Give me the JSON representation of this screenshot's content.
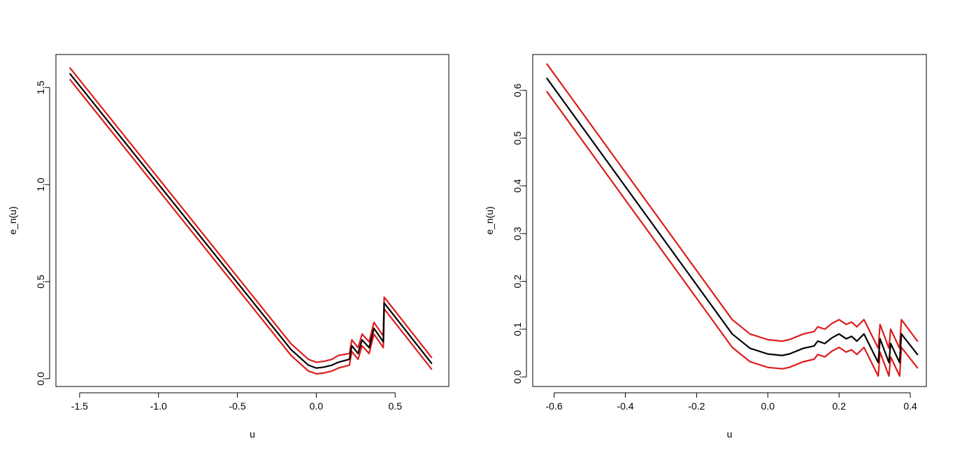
{
  "colors": {
    "estimate": "#000000",
    "bounds": "#dd1c1c",
    "frame": "#000000",
    "background": "#ffffff"
  },
  "chart_data": [
    {
      "type": "line",
      "title": "",
      "xlabel": "u",
      "ylabel": "e_n(u)",
      "xlim": [
        -1.65,
        0.84
      ],
      "ylim": [
        -0.04,
        1.67
      ],
      "xticks": [
        -1.5,
        -1.0,
        -0.5,
        0.0,
        0.5
      ],
      "xtick_labels": [
        "-1.5",
        "-1.0",
        "-0.5",
        "0.0",
        "0.5"
      ],
      "yticks": [
        0.0,
        0.5,
        1.0,
        1.5
      ],
      "ytick_labels": [
        "0.0",
        "0.5",
        "1.0",
        "1.5"
      ],
      "grid": false,
      "legend": "none",
      "series": [
        {
          "role": "upper",
          "color": "#dd1c1c",
          "points": [
            [
              -1.56,
              1.6
            ],
            [
              -0.16,
              0.18
            ],
            [
              -0.05,
              0.1
            ],
            [
              0.0,
              0.085
            ],
            [
              0.05,
              0.09
            ],
            [
              0.1,
              0.1
            ],
            [
              0.14,
              0.12
            ],
            [
              0.21,
              0.13
            ],
            [
              0.225,
              0.2
            ],
            [
              0.265,
              0.16
            ],
            [
              0.29,
              0.23
            ],
            [
              0.335,
              0.19
            ],
            [
              0.365,
              0.29
            ],
            [
              0.425,
              0.22
            ],
            [
              0.43,
              0.42
            ],
            [
              0.73,
              0.11
            ]
          ]
        },
        {
          "role": "estimate",
          "color": "#000000",
          "points": [
            [
              -1.56,
              1.57
            ],
            [
              -0.16,
              0.15
            ],
            [
              -0.05,
              0.07
            ],
            [
              0.0,
              0.055
            ],
            [
              0.05,
              0.06
            ],
            [
              0.1,
              0.07
            ],
            [
              0.14,
              0.085
            ],
            [
              0.21,
              0.1
            ],
            [
              0.225,
              0.17
            ],
            [
              0.265,
              0.13
            ],
            [
              0.29,
              0.2
            ],
            [
              0.335,
              0.16
            ],
            [
              0.365,
              0.26
            ],
            [
              0.425,
              0.19
            ],
            [
              0.43,
              0.39
            ],
            [
              0.73,
              0.08
            ]
          ]
        },
        {
          "role": "lower",
          "color": "#dd1c1c",
          "points": [
            [
              -1.56,
              1.54
            ],
            [
              -0.16,
              0.12
            ],
            [
              -0.05,
              0.04
            ],
            [
              0.0,
              0.025
            ],
            [
              0.05,
              0.03
            ],
            [
              0.1,
              0.04
            ],
            [
              0.14,
              0.055
            ],
            [
              0.21,
              0.07
            ],
            [
              0.225,
              0.14
            ],
            [
              0.265,
              0.1
            ],
            [
              0.29,
              0.17
            ],
            [
              0.335,
              0.13
            ],
            [
              0.365,
              0.23
            ],
            [
              0.425,
              0.16
            ],
            [
              0.43,
              0.36
            ],
            [
              0.73,
              0.05
            ]
          ]
        }
      ]
    },
    {
      "type": "line",
      "title": "",
      "xlabel": "u",
      "ylabel": "e_n(u)",
      "xlim": [
        -0.66,
        0.445
      ],
      "ylim": [
        -0.02,
        0.675
      ],
      "xticks": [
        -0.6,
        -0.4,
        -0.2,
        0.0,
        0.2,
        0.4
      ],
      "xtick_labels": [
        "-0.6",
        "-0.4",
        "-0.2",
        "0.0",
        "0.2",
        "0.4"
      ],
      "yticks": [
        0.0,
        0.1,
        0.2,
        0.3,
        0.4,
        0.5,
        0.6
      ],
      "ytick_labels": [
        "0.0",
        "0.1",
        "0.2",
        "0.3",
        "0.4",
        "0.5",
        "0.6"
      ],
      "grid": false,
      "legend": "none",
      "series": [
        {
          "role": "upper",
          "color": "#dd1c1c",
          "points": [
            [
              -0.62,
              0.655
            ],
            [
              -0.1,
              0.12
            ],
            [
              -0.05,
              0.09
            ],
            [
              0.0,
              0.078
            ],
            [
              0.04,
              0.075
            ],
            [
              0.06,
              0.078
            ],
            [
              0.1,
              0.09
            ],
            [
              0.13,
              0.095
            ],
            [
              0.14,
              0.105
            ],
            [
              0.16,
              0.1
            ],
            [
              0.18,
              0.112
            ],
            [
              0.2,
              0.12
            ],
            [
              0.22,
              0.11
            ],
            [
              0.235,
              0.115
            ],
            [
              0.25,
              0.105
            ],
            [
              0.27,
              0.12
            ],
            [
              0.31,
              0.06
            ],
            [
              0.315,
              0.11
            ],
            [
              0.34,
              0.06
            ],
            [
              0.345,
              0.1
            ],
            [
              0.37,
              0.06
            ],
            [
              0.375,
              0.12
            ],
            [
              0.42,
              0.075
            ]
          ]
        },
        {
          "role": "estimate",
          "color": "#000000",
          "points": [
            [
              -0.62,
              0.625
            ],
            [
              -0.1,
              0.09
            ],
            [
              -0.05,
              0.06
            ],
            [
              0.0,
              0.048
            ],
            [
              0.04,
              0.045
            ],
            [
              0.06,
              0.048
            ],
            [
              0.1,
              0.06
            ],
            [
              0.13,
              0.065
            ],
            [
              0.14,
              0.075
            ],
            [
              0.16,
              0.07
            ],
            [
              0.18,
              0.082
            ],
            [
              0.2,
              0.09
            ],
            [
              0.22,
              0.08
            ],
            [
              0.235,
              0.085
            ],
            [
              0.25,
              0.075
            ],
            [
              0.27,
              0.09
            ],
            [
              0.31,
              0.03
            ],
            [
              0.315,
              0.08
            ],
            [
              0.34,
              0.03
            ],
            [
              0.345,
              0.07
            ],
            [
              0.37,
              0.03
            ],
            [
              0.375,
              0.09
            ],
            [
              0.42,
              0.047
            ]
          ]
        },
        {
          "role": "lower",
          "color": "#dd1c1c",
          "points": [
            [
              -0.62,
              0.597
            ],
            [
              -0.1,
              0.062
            ],
            [
              -0.05,
              0.032
            ],
            [
              0.0,
              0.02
            ],
            [
              0.04,
              0.017
            ],
            [
              0.06,
              0.02
            ],
            [
              0.1,
              0.032
            ],
            [
              0.13,
              0.037
            ],
            [
              0.14,
              0.047
            ],
            [
              0.16,
              0.042
            ],
            [
              0.18,
              0.054
            ],
            [
              0.2,
              0.062
            ],
            [
              0.22,
              0.052
            ],
            [
              0.235,
              0.057
            ],
            [
              0.25,
              0.047
            ],
            [
              0.27,
              0.062
            ],
            [
              0.31,
              0.002
            ],
            [
              0.315,
              0.052
            ],
            [
              0.34,
              0.002
            ],
            [
              0.345,
              0.042
            ],
            [
              0.37,
              0.002
            ],
            [
              0.375,
              0.062
            ],
            [
              0.42,
              0.019
            ]
          ]
        }
      ]
    }
  ]
}
